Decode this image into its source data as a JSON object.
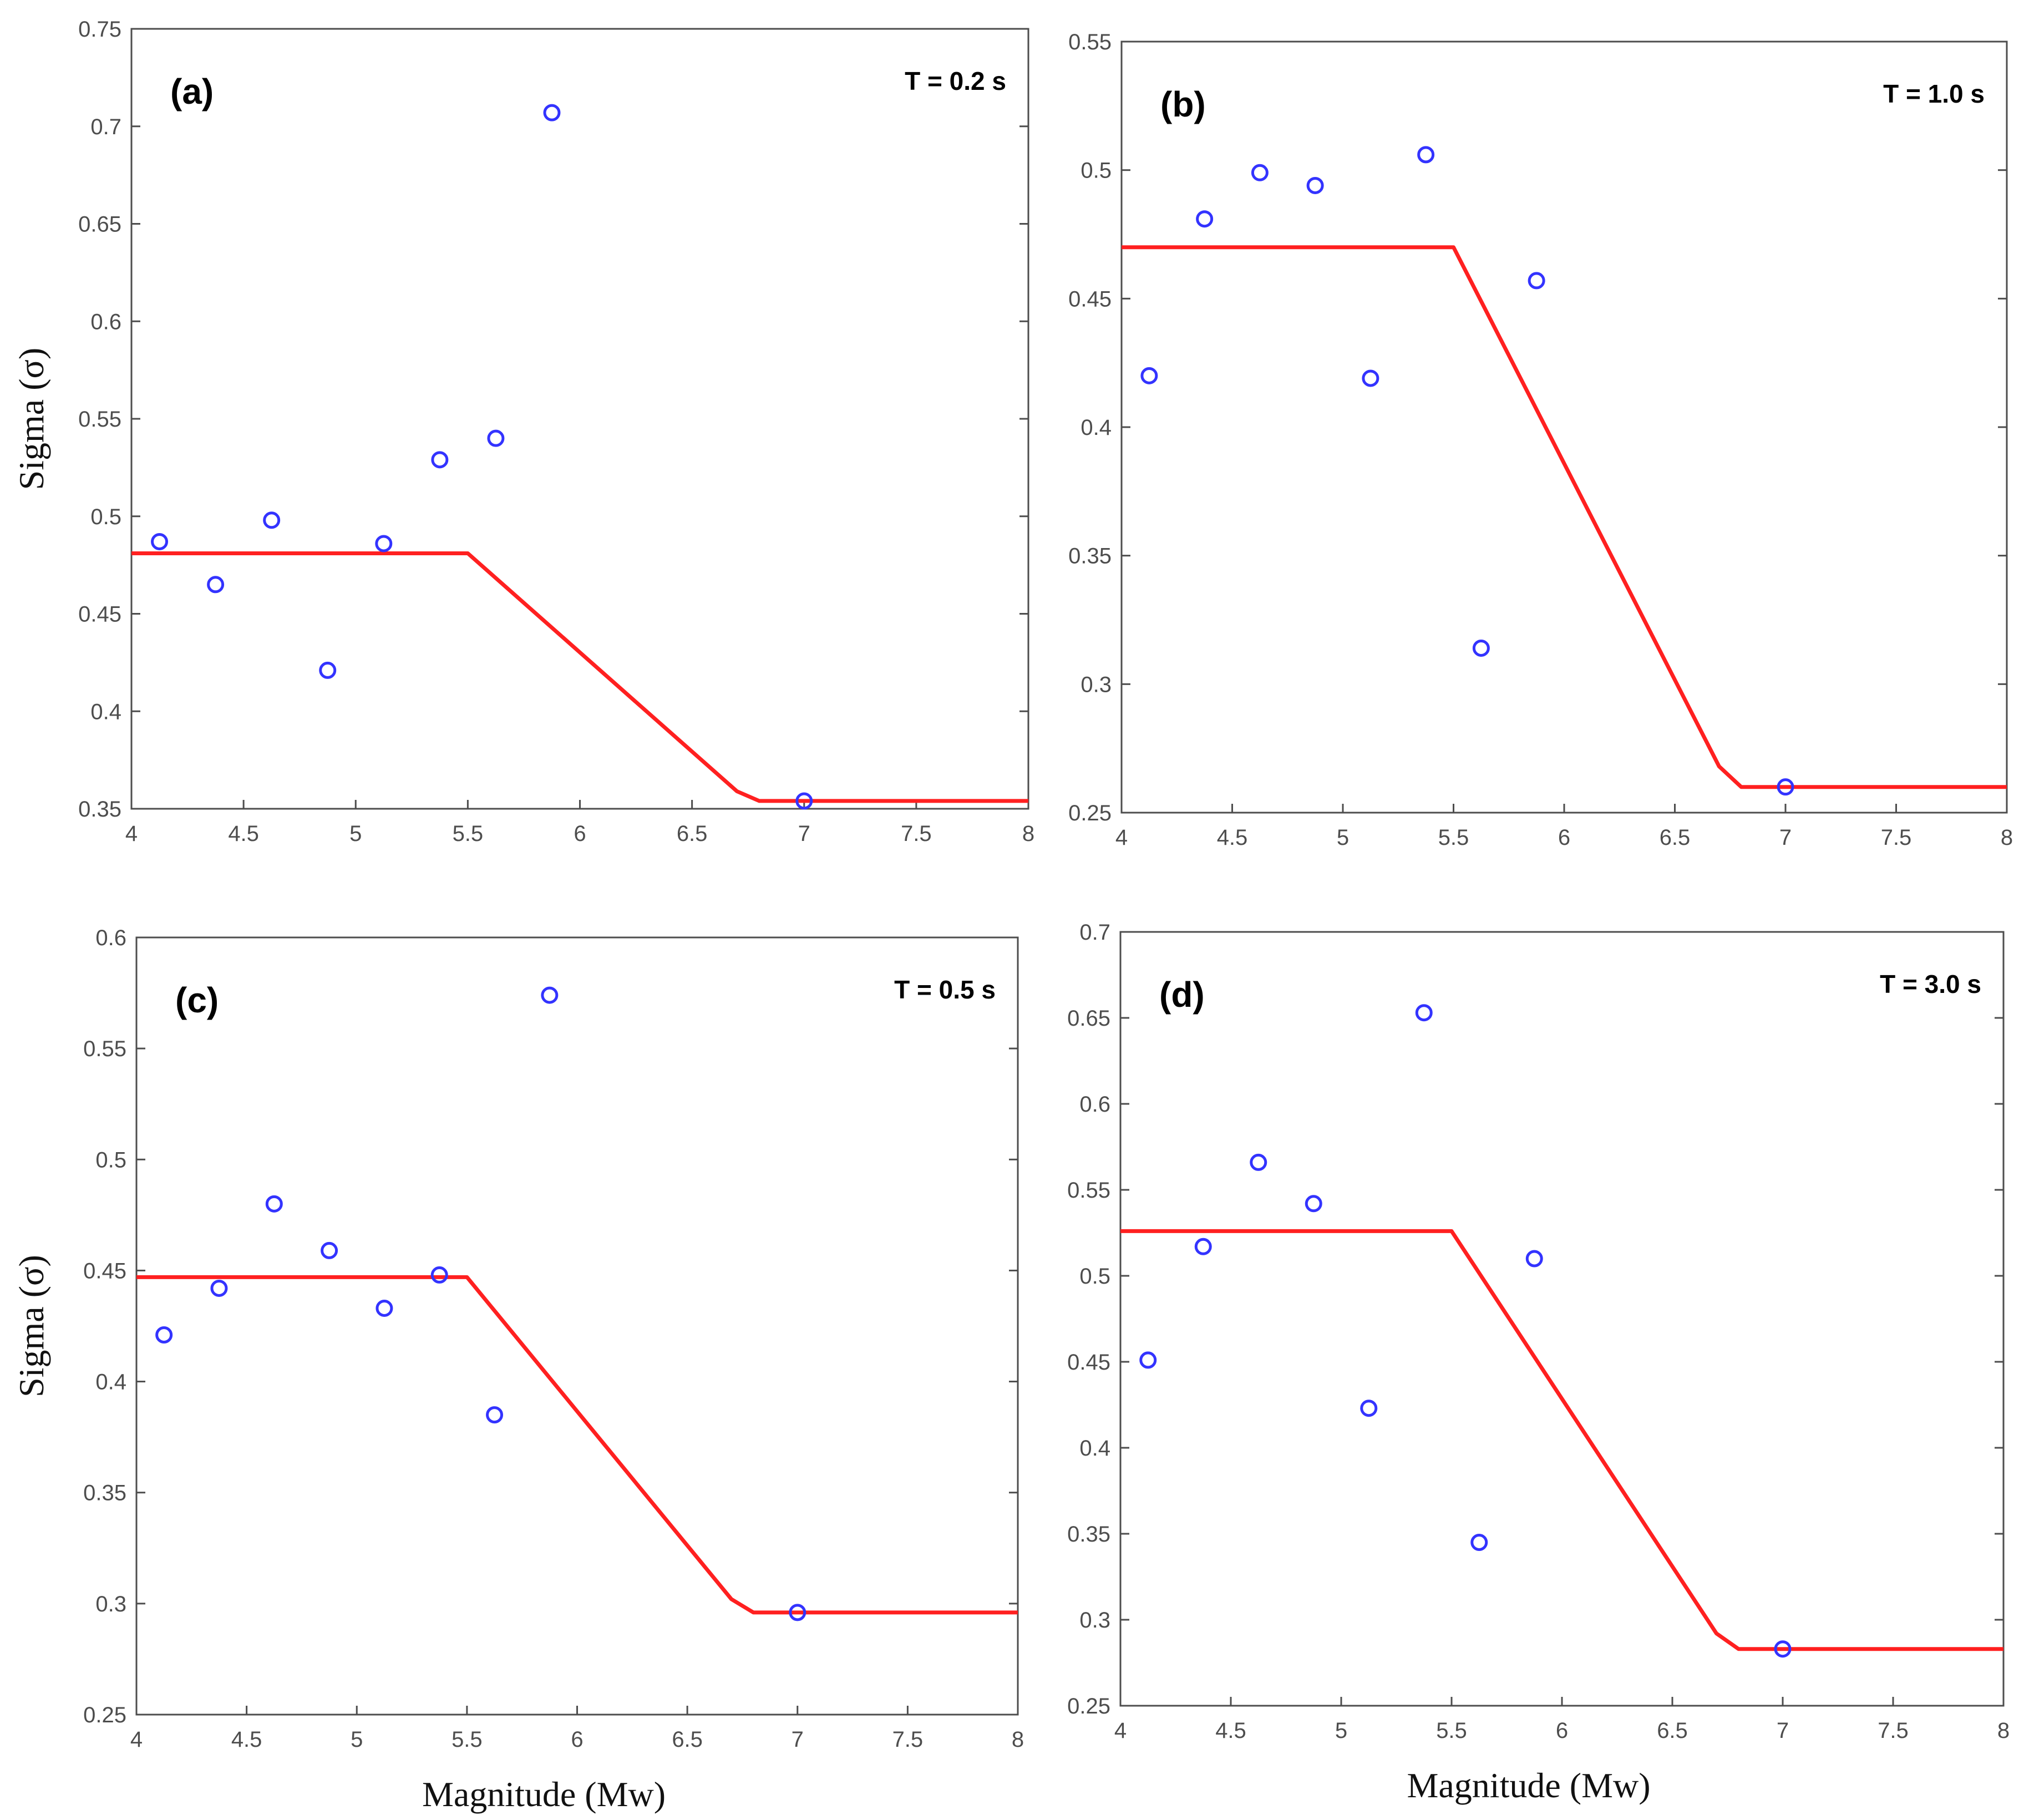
{
  "figure": {
    "xlabel": "Magnitude (Mw)",
    "ylabel": "Sigma (σ)",
    "colors": {
      "points": "#3333ff",
      "model_line": "#ff2020",
      "axes": "#4d4d4d"
    }
  },
  "chart_data": [
    {
      "type": "scatter",
      "panel": "(a)",
      "period": "T = 0.2 s",
      "xlabel": "",
      "ylabel": "Sigma (σ)",
      "xlim": [
        4,
        8
      ],
      "ylim": [
        0.35,
        0.75
      ],
      "xticks": [
        "4",
        "4.5",
        "5",
        "5.5",
        "6",
        "6.5",
        "7",
        "7.5",
        "8"
      ],
      "yticks": [
        "0.35",
        "0.4",
        "0.45",
        "0.5",
        "0.55",
        "0.6",
        "0.65",
        "0.7",
        "0.75"
      ],
      "series": [
        {
          "name": "data",
          "marker": "circle",
          "x": [
            4.125,
            4.375,
            4.625,
            4.875,
            5.125,
            5.375,
            5.625,
            5.875,
            7.0
          ],
          "y": [
            0.487,
            0.465,
            0.498,
            0.421,
            0.486,
            0.529,
            0.54,
            0.707,
            0.354
          ]
        },
        {
          "name": "model",
          "marker": "line",
          "x": [
            4.0,
            5.5,
            6.7,
            6.8,
            8.0
          ],
          "y": [
            0.481,
            0.481,
            0.359,
            0.354,
            0.354
          ]
        }
      ]
    },
    {
      "type": "scatter",
      "panel": "(b)",
      "period": "T = 1.0 s",
      "xlabel": "",
      "ylabel": "",
      "xlim": [
        4,
        8
      ],
      "ylim": [
        0.25,
        0.55
      ],
      "xticks": [
        "4",
        "4.5",
        "5",
        "5.5",
        "6",
        "6.5",
        "7",
        "7.5",
        "8"
      ],
      "yticks": [
        "0.25",
        "0.3",
        "0.35",
        "0.4",
        "0.45",
        "0.5",
        "0.55"
      ],
      "series": [
        {
          "name": "data",
          "marker": "circle",
          "x": [
            4.125,
            4.375,
            4.625,
            4.875,
            5.125,
            5.375,
            5.625,
            5.875,
            7.0
          ],
          "y": [
            0.42,
            0.481,
            0.499,
            0.494,
            0.419,
            0.506,
            0.314,
            0.457,
            0.26
          ]
        },
        {
          "name": "model",
          "marker": "line",
          "x": [
            4.0,
            5.5,
            6.7,
            6.8,
            8.0
          ],
          "y": [
            0.47,
            0.47,
            0.268,
            0.26,
            0.26
          ]
        }
      ]
    },
    {
      "type": "scatter",
      "panel": "(c)",
      "period": "T = 0.5 s",
      "xlabel": "Magnitude (Mw)",
      "ylabel": "Sigma (σ)",
      "xlim": [
        4,
        8
      ],
      "ylim": [
        0.25,
        0.6
      ],
      "xticks": [
        "4",
        "4.5",
        "5",
        "5.5",
        "6",
        "6.5",
        "7",
        "7.5",
        "8"
      ],
      "yticks": [
        "0.25",
        "0.3",
        "0.35",
        "0.4",
        "0.45",
        "0.5",
        "0.55",
        "0.6"
      ],
      "series": [
        {
          "name": "data",
          "marker": "circle",
          "x": [
            4.125,
            4.375,
            4.625,
            4.875,
            5.125,
            5.375,
            5.625,
            5.875,
            7.0
          ],
          "y": [
            0.421,
            0.442,
            0.48,
            0.459,
            0.433,
            0.448,
            0.385,
            0.574,
            0.296
          ]
        },
        {
          "name": "model",
          "marker": "line",
          "x": [
            4.0,
            5.5,
            6.7,
            6.8,
            8.0
          ],
          "y": [
            0.447,
            0.447,
            0.302,
            0.296,
            0.296
          ]
        }
      ]
    },
    {
      "type": "scatter",
      "panel": "(d)",
      "period": "T = 3.0 s",
      "xlabel": "Magnitude (Mw)",
      "ylabel": "",
      "xlim": [
        4,
        8
      ],
      "ylim": [
        0.25,
        0.7
      ],
      "xticks": [
        "4",
        "4.5",
        "5",
        "5.5",
        "6",
        "6.5",
        "7",
        "7.5",
        "8"
      ],
      "yticks": [
        "0.25",
        "0.3",
        "0.35",
        "0.4",
        "0.45",
        "0.5",
        "0.55",
        "0.6",
        "0.65",
        "0.7"
      ],
      "series": [
        {
          "name": "data",
          "marker": "circle",
          "x": [
            4.125,
            4.375,
            4.625,
            4.875,
            5.125,
            5.375,
            5.625,
            5.875,
            7.0
          ],
          "y": [
            0.451,
            0.517,
            0.566,
            0.542,
            0.423,
            0.653,
            0.345,
            0.51,
            0.283
          ]
        },
        {
          "name": "model",
          "marker": "line",
          "x": [
            4.0,
            5.5,
            6.7,
            6.8,
            8.0
          ],
          "y": [
            0.526,
            0.526,
            0.292,
            0.283,
            0.283
          ]
        }
      ]
    }
  ]
}
